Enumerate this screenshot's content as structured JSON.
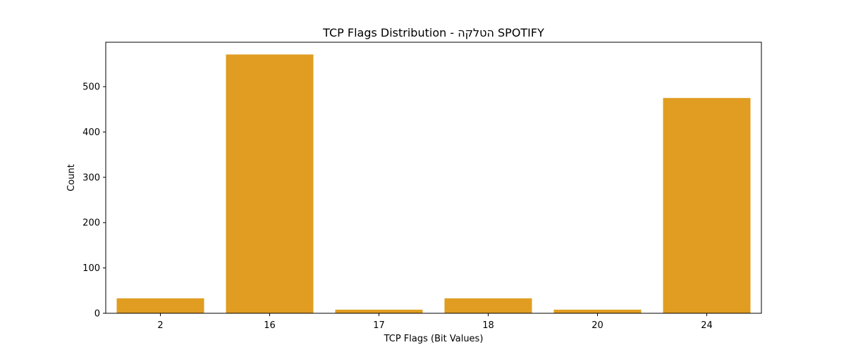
{
  "chart_data": {
    "type": "bar",
    "title": "TCP Flags Distribution - הטלקה SPOTIFY",
    "xlabel": "TCP Flags (Bit Values)",
    "ylabel": "Count",
    "categories": [
      "2",
      "16",
      "17",
      "18",
      "20",
      "24"
    ],
    "values": [
      33,
      571,
      8,
      33,
      8,
      475
    ],
    "ylim": [
      0,
      598
    ],
    "yticks": [
      0,
      100,
      200,
      300,
      400,
      500
    ],
    "bar_color": "#e09d21",
    "grid": false,
    "legend": "none"
  }
}
